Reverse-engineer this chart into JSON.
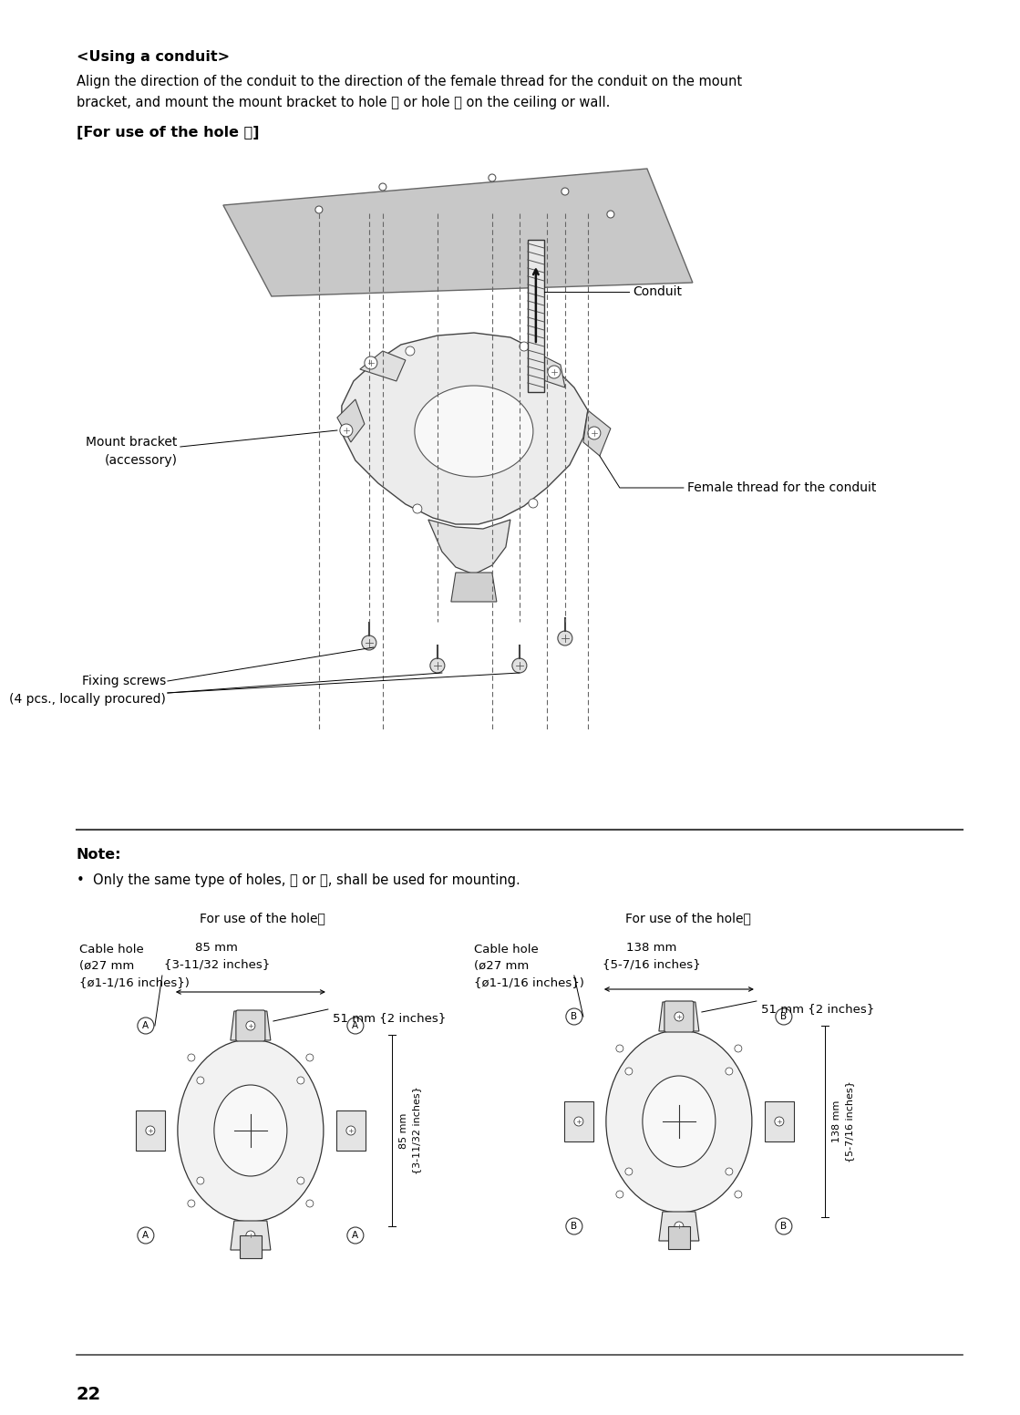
{
  "page_number": "22",
  "background_color": "#ffffff",
  "text_color": "#000000",
  "title1": "<Using a conduit>",
  "body1_line1": "Align the direction of the conduit to the direction of the female thread for the conduit on the mount",
  "body1_line2": "bracket, and mount the mount bracket to hole Ⓐ or hole Ⓑ on the ceiling or wall.",
  "title2": "[For use of the hole Ⓐ]",
  "note_title": "Note:",
  "note_body": "•  Only the same type of holes, Ⓐ or Ⓑ, shall be used for mounting.",
  "diagram_title_A": "For use of the holeⒶ",
  "diagram_title_B": "For use of the holeⒷ",
  "label_cable_hole_A1": "Cable hole",
  "label_cable_hole_A2": "(ø27 mm",
  "label_cable_hole_A3": "{ø1-1/16 inches})",
  "label_85mm_top": "85 mm",
  "label_85mm_brace": "{3-11/32 inches}",
  "label_51mm_A": "51 mm {2 inches}",
  "label_85mm_vert_top": "85 mm",
  "label_85mm_vert_brace": "{3-11/32 inches}",
  "label_cable_hole_B1": "Cable hole",
  "label_cable_hole_B2": "(ø27 mm",
  "label_cable_hole_B3": "{ø1-1/16 inches})",
  "label_138mm_top": "138 mm",
  "label_138mm_brace": "{5-7/16 inches}",
  "label_51mm_B": "51 mm {2 inches}",
  "label_138mm_vert_top": "138 mm",
  "label_138mm_vert_brace": "{5-7/16 inches}",
  "label_conduit": "Conduit",
  "label_mount_bracket_1": "Mount bracket",
  "label_mount_bracket_2": "(accessory)",
  "label_female_thread": "Female thread for the conduit",
  "label_fixing_screws_1": "Fixing screws",
  "label_fixing_screws_2": "(4 pcs., locally procured)",
  "gray_ceiling": "#c8c8c8",
  "gray_bracket": "#d8d8d8",
  "white": "#ffffff"
}
